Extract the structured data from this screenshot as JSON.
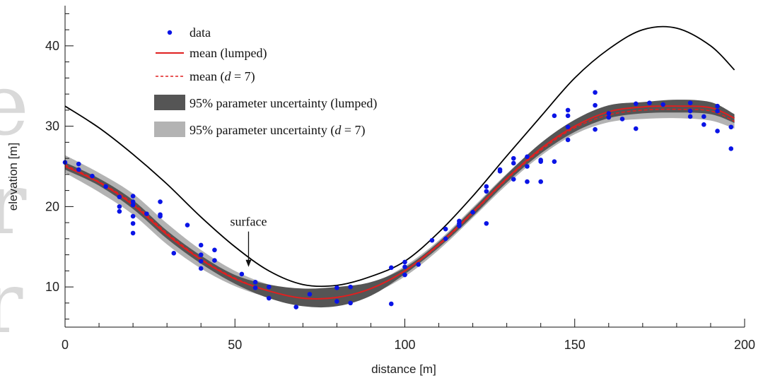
{
  "chart_data": {
    "type": "line",
    "title": "",
    "xlabel": "distance [m]",
    "ylabel": "elevation [m]",
    "xlim": [
      0,
      200
    ],
    "ylim": [
      5,
      45
    ],
    "x_ticks": [
      0,
      50,
      100,
      150,
      200
    ],
    "y_ticks": [
      10,
      20,
      30,
      40
    ],
    "grid": false,
    "legend_position": "top-left",
    "annotation": {
      "text": "surface",
      "x": 54,
      "y": 12.5
    },
    "legend": [
      {
        "key": "data",
        "label": "data",
        "kind": "marker",
        "color": "#0a14e6"
      },
      {
        "key": "mean_lumped",
        "label": "mean (lumped)",
        "kind": "line",
        "color": "#e02020"
      },
      {
        "key": "mean_d7",
        "label": "mean (",
        "label_var": "d",
        "label_suffix": " = 7)",
        "kind": "dashed",
        "color": "#e02020"
      },
      {
        "key": "band_lumped",
        "label": "95% parameter uncertainty (lumped)",
        "kind": "patch",
        "color": "#555555"
      },
      {
        "key": "band_d7",
        "label": "95% parameter uncertainty (",
        "label_var": "d",
        "label_suffix": " = 7)",
        "kind": "patch",
        "color": "#b3b3b3"
      }
    ],
    "surface": {
      "name": "surface",
      "x": [
        0,
        10,
        20,
        30,
        40,
        50,
        60,
        70,
        80,
        90,
        100,
        110,
        120,
        130,
        140,
        150,
        160,
        170,
        180,
        190,
        197
      ],
      "y": [
        32.5,
        29.8,
        26.5,
        22.8,
        18.7,
        15.0,
        12.0,
        10.3,
        10.2,
        11.3,
        13.2,
        16.8,
        21.3,
        26.3,
        31.2,
        36.0,
        39.6,
        42.0,
        42.2,
        40.0,
        37.0
      ]
    },
    "mean_lumped": {
      "x": [
        0,
        10,
        20,
        30,
        40,
        50,
        60,
        70,
        80,
        90,
        100,
        110,
        120,
        130,
        140,
        150,
        160,
        170,
        180,
        190,
        197
      ],
      "y": [
        25.0,
        23.0,
        20.2,
        16.5,
        13.4,
        11.0,
        9.5,
        8.6,
        8.7,
        9.8,
        12.0,
        15.3,
        19.3,
        23.5,
        27.2,
        30.0,
        31.8,
        32.4,
        32.5,
        32.3,
        31.0
      ]
    },
    "mean_d7": {
      "x": [
        0,
        10,
        20,
        30,
        40,
        50,
        60,
        70,
        80,
        90,
        100,
        110,
        120,
        130,
        140,
        150,
        160,
        170,
        180,
        190,
        197
      ],
      "y": [
        25.2,
        23.1,
        20.4,
        16.7,
        13.5,
        11.1,
        9.5,
        8.6,
        8.7,
        9.8,
        12.0,
        15.2,
        19.2,
        23.4,
        27.0,
        29.8,
        31.4,
        32.0,
        32.1,
        31.9,
        30.6
      ]
    },
    "band_lumped": {
      "x": [
        0,
        10,
        20,
        30,
        40,
        50,
        60,
        70,
        80,
        90,
        100,
        110,
        120,
        130,
        140,
        150,
        160,
        170,
        180,
        190,
        197
      ],
      "upper": [
        25.5,
        23.5,
        20.8,
        17.0,
        13.9,
        11.5,
        10.3,
        9.8,
        10.0,
        10.6,
        12.4,
        15.6,
        19.7,
        24.0,
        27.9,
        30.8,
        32.6,
        33.0,
        33.3,
        33.0,
        31.5
      ],
      "lower": [
        24.6,
        22.6,
        19.7,
        16.0,
        12.9,
        10.4,
        8.6,
        7.6,
        7.6,
        8.9,
        11.6,
        14.9,
        18.8,
        23.0,
        26.6,
        29.3,
        31.0,
        31.6,
        31.7,
        31.5,
        30.4
      ]
    },
    "band_d7": {
      "x": [
        0,
        10,
        20,
        30,
        40,
        50,
        60,
        70,
        80,
        90,
        100,
        110,
        120,
        130,
        140,
        150,
        160,
        170,
        180,
        190,
        197
      ],
      "upper": [
        26.4,
        24.2,
        21.6,
        17.9,
        14.6,
        12.0,
        10.3,
        9.4,
        9.4,
        10.4,
        12.6,
        15.8,
        19.9,
        24.1,
        27.8,
        30.6,
        32.2,
        32.6,
        32.8,
        32.6,
        31.3
      ],
      "lower": [
        24.2,
        21.8,
        19.0,
        15.3,
        12.3,
        10.1,
        8.7,
        7.9,
        8.0,
        9.1,
        11.3,
        14.6,
        18.6,
        22.7,
        26.3,
        29.0,
        30.5,
        30.9,
        31.0,
        30.7,
        29.7
      ]
    },
    "data_points": {
      "x": [
        0,
        4,
        4,
        8,
        12,
        16,
        16,
        16,
        20,
        20,
        20,
        20,
        20,
        20,
        24,
        28,
        28,
        28,
        32,
        36,
        40,
        40,
        40,
        40,
        44,
        44,
        52,
        56,
        56,
        60,
        60,
        68,
        72,
        80,
        80,
        84,
        84,
        96,
        96,
        100,
        100,
        100,
        104,
        108,
        112,
        112,
        116,
        116,
        116,
        120,
        124,
        124,
        124,
        128,
        128,
        132,
        132,
        132,
        136,
        136,
        136,
        140,
        140,
        140,
        144,
        144,
        148,
        148,
        148,
        148,
        156,
        156,
        156,
        160,
        160,
        164,
        168,
        168,
        172,
        176,
        184,
        184,
        184,
        188,
        188,
        192,
        192,
        192,
        196,
        196
      ],
      "y": [
        25.5,
        25.3,
        24.6,
        23.8,
        22.5,
        21.2,
        20.0,
        19.4,
        21.3,
        20.6,
        20.2,
        18.8,
        17.9,
        16.7,
        19.1,
        20.6,
        19.0,
        18.8,
        14.2,
        17.7,
        15.2,
        14.0,
        13.2,
        12.3,
        14.6,
        13.3,
        11.6,
        10.6,
        9.9,
        10.0,
        8.6,
        7.5,
        9.1,
        9.9,
        8.2,
        10.0,
        8.0,
        12.4,
        7.9,
        13.1,
        12.5,
        11.5,
        12.8,
        15.8,
        17.2,
        16.0,
        18.2,
        17.9,
        17.6,
        19.3,
        22.5,
        21.9,
        17.9,
        24.6,
        24.4,
        26.0,
        25.4,
        23.4,
        26.2,
        25.0,
        23.1,
        25.8,
        25.6,
        23.1,
        31.3,
        25.6,
        32.0,
        31.3,
        29.9,
        28.3,
        34.2,
        32.6,
        29.6,
        31.6,
        31.1,
        30.9,
        32.8,
        29.7,
        32.9,
        32.7,
        32.9,
        31.9,
        31.2,
        31.2,
        30.2,
        32.5,
        31.9,
        29.4,
        29.9,
        27.2
      ]
    }
  }
}
